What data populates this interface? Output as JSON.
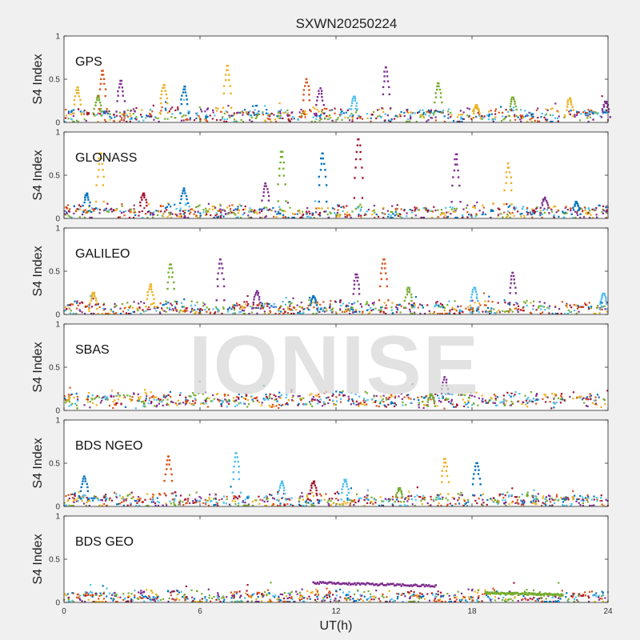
{
  "figure_title": "SXWN20250224",
  "watermark": "IONISE",
  "colors": [
    "#0072BD",
    "#D95319",
    "#EDB120",
    "#7E2F8E",
    "#77AC30",
    "#4DBEEE",
    "#A2142F"
  ],
  "chart_data": [
    {
      "type": "scatter",
      "panel_label": "GPS",
      "ylabel": "S4 Index",
      "xlim": [
        0,
        24
      ],
      "ylim": [
        0,
        1
      ],
      "yticks": [
        "0",
        "0.5",
        "1"
      ],
      "baseline": 0.08,
      "spikes": [
        {
          "x": 0.6,
          "y": 0.42,
          "c": 2
        },
        {
          "x": 1.5,
          "y": 0.32,
          "c": 4
        },
        {
          "x": 1.7,
          "y": 0.62,
          "c": 1
        },
        {
          "x": 2.5,
          "y": 0.5,
          "c": 3
        },
        {
          "x": 4.4,
          "y": 0.45,
          "c": 2
        },
        {
          "x": 5.3,
          "y": 0.43,
          "c": 0
        },
        {
          "x": 7.2,
          "y": 0.68,
          "c": 2
        },
        {
          "x": 10.7,
          "y": 0.52,
          "c": 1
        },
        {
          "x": 11.3,
          "y": 0.41,
          "c": 3
        },
        {
          "x": 12.8,
          "y": 0.31,
          "c": 5
        },
        {
          "x": 14.2,
          "y": 0.66,
          "c": 3
        },
        {
          "x": 16.5,
          "y": 0.47,
          "c": 4
        },
        {
          "x": 18.2,
          "y": 0.21,
          "c": 2
        },
        {
          "x": 19.8,
          "y": 0.3,
          "c": 4
        },
        {
          "x": 22.3,
          "y": 0.29,
          "c": 2
        },
        {
          "x": 23.9,
          "y": 0.25,
          "c": 3
        }
      ]
    },
    {
      "type": "scatter",
      "panel_label": "GLONASS",
      "ylabel": "S4 Index",
      "xlim": [
        0,
        24
      ],
      "ylim": [
        0,
        1
      ],
      "yticks": [
        "0",
        "0.5",
        "1"
      ],
      "baseline": 0.07,
      "spikes": [
        {
          "x": 1.0,
          "y": 0.3,
          "c": 0
        },
        {
          "x": 1.6,
          "y": 0.78,
          "c": 2
        },
        {
          "x": 3.5,
          "y": 0.3,
          "c": 6
        },
        {
          "x": 5.3,
          "y": 0.36,
          "c": 0
        },
        {
          "x": 8.9,
          "y": 0.42,
          "c": 3
        },
        {
          "x": 9.6,
          "y": 0.8,
          "c": 4
        },
        {
          "x": 11.4,
          "y": 0.78,
          "c": 0
        },
        {
          "x": 13.0,
          "y": 0.95,
          "c": 6
        },
        {
          "x": 17.3,
          "y": 0.77,
          "c": 3
        },
        {
          "x": 19.6,
          "y": 0.66,
          "c": 2
        },
        {
          "x": 21.2,
          "y": 0.25,
          "c": 3
        },
        {
          "x": 22.6,
          "y": 0.2,
          "c": 0
        }
      ]
    },
    {
      "type": "scatter",
      "panel_label": "GALILEO",
      "ylabel": "S4 Index",
      "xlim": [
        0,
        24
      ],
      "ylim": [
        0,
        1
      ],
      "yticks": [
        "0",
        "0.5",
        "1"
      ],
      "baseline": 0.07,
      "spikes": [
        {
          "x": 1.3,
          "y": 0.26,
          "c": 2
        },
        {
          "x": 3.8,
          "y": 0.36,
          "c": 2
        },
        {
          "x": 4.7,
          "y": 0.6,
          "c": 4
        },
        {
          "x": 6.9,
          "y": 0.66,
          "c": 3
        },
        {
          "x": 8.5,
          "y": 0.28,
          "c": 3
        },
        {
          "x": 11.0,
          "y": 0.22,
          "c": 0
        },
        {
          "x": 12.9,
          "y": 0.48,
          "c": 3
        },
        {
          "x": 14.1,
          "y": 0.66,
          "c": 1
        },
        {
          "x": 15.2,
          "y": 0.32,
          "c": 4
        },
        {
          "x": 18.1,
          "y": 0.32,
          "c": 5
        },
        {
          "x": 19.8,
          "y": 0.5,
          "c": 3
        },
        {
          "x": 23.8,
          "y": 0.25,
          "c": 5
        }
      ]
    },
    {
      "type": "scatter",
      "panel_label": "SBAS",
      "ylabel": "S4 Index",
      "xlim": [
        0,
        24
      ],
      "ylim": [
        0,
        1
      ],
      "yticks": [
        "0",
        "0.5",
        "1"
      ],
      "baseline": 0.12,
      "spikes": [
        {
          "x": 16.8,
          "y": 0.4,
          "c": 3
        },
        {
          "x": 16.2,
          "y": 0.2,
          "c": 4
        }
      ]
    },
    {
      "type": "scatter",
      "panel_label": "BDS NGEO",
      "ylabel": "S4 Index",
      "xlim": [
        0,
        24
      ],
      "ylim": [
        0,
        1
      ],
      "yticks": [
        "0",
        "0.5",
        "1"
      ],
      "baseline": 0.07,
      "spikes": [
        {
          "x": 0.9,
          "y": 0.36,
          "c": 0
        },
        {
          "x": 4.6,
          "y": 0.6,
          "c": 1
        },
        {
          "x": 7.6,
          "y": 0.64,
          "c": 5
        },
        {
          "x": 9.6,
          "y": 0.3,
          "c": 5
        },
        {
          "x": 11.0,
          "y": 0.3,
          "c": 6
        },
        {
          "x": 12.4,
          "y": 0.32,
          "c": 5
        },
        {
          "x": 16.8,
          "y": 0.57,
          "c": 2
        },
        {
          "x": 18.2,
          "y": 0.52,
          "c": 0
        },
        {
          "x": 14.8,
          "y": 0.22,
          "c": 4
        }
      ]
    },
    {
      "type": "scatter",
      "panel_label": "BDS GEO",
      "ylabel": "S4 Index",
      "xlabel": "UT(h)",
      "xlim": [
        0,
        24
      ],
      "xticks": [
        "0",
        "6",
        "12",
        "18",
        "24"
      ],
      "ylim": [
        0,
        1
      ],
      "yticks": [
        "0",
        "0.5",
        "1"
      ],
      "baseline": 0.06,
      "segments": [
        {
          "x0": 11.0,
          "x1": 16.4,
          "y0": 0.23,
          "y1": 0.19,
          "c": 3
        },
        {
          "x0": 18.6,
          "x1": 22.0,
          "y0": 0.11,
          "y1": 0.09,
          "c": 4
        }
      ]
    }
  ]
}
